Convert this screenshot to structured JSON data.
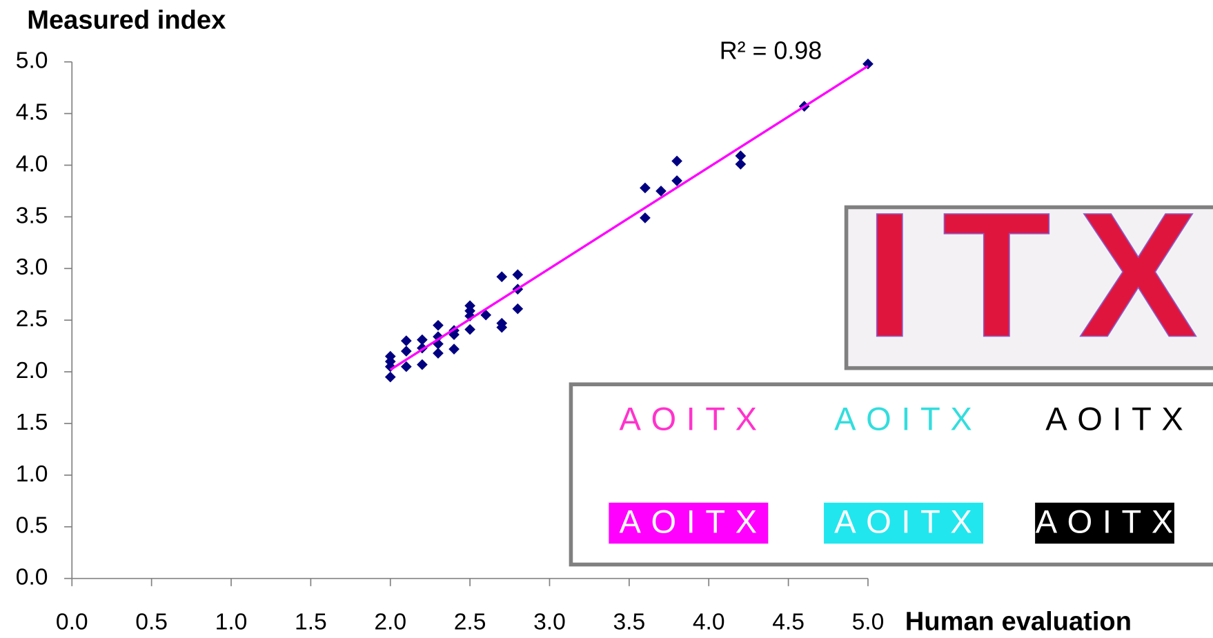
{
  "chart_data": {
    "type": "scatter",
    "ylabel": "Measured index",
    "xlabel": "Human evaluation",
    "annotation": "R² = 0.98",
    "xlim": [
      0,
      5
    ],
    "ylim": [
      0,
      5
    ],
    "xticks": [
      {
        "value": 0,
        "label": "0.0"
      },
      0.5,
      {
        "value": 1,
        "label": "1.0"
      },
      1.5,
      {
        "value": 2,
        "label": "2.0"
      },
      2.5,
      {
        "value": 3,
        "label": "3.0"
      },
      3.5,
      {
        "value": 4,
        "label": "4.0"
      },
      4.5,
      {
        "value": 5,
        "label": "5.0"
      }
    ],
    "yticks": [
      {
        "value": 0,
        "label": "0.0"
      },
      0.5,
      {
        "value": 1,
        "label": "1.0"
      },
      1.5,
      {
        "value": 2,
        "label": "2.0"
      },
      2.5,
      {
        "value": 3,
        "label": "3.0"
      },
      3.5,
      {
        "value": 4,
        "label": "4.0"
      },
      4.5,
      {
        "value": 5,
        "label": "5.0"
      }
    ],
    "series": [
      {
        "color": "#000080",
        "x": [
          2.0,
          2.0,
          2.0,
          2.0,
          2.1,
          2.1,
          2.1,
          2.2,
          2.2,
          2.2,
          2.3,
          2.3,
          2.3,
          2.3,
          2.4,
          2.4,
          2.4,
          2.5,
          2.5,
          2.5,
          2.5,
          2.6,
          2.7,
          2.7,
          2.7,
          2.8,
          2.8,
          2.8,
          3.6,
          3.6,
          3.7,
          3.8,
          3.8,
          4.2,
          4.2,
          4.6,
          5.0
        ],
        "values": [
          2.15,
          2.1,
          2.05,
          1.95,
          2.3,
          2.2,
          2.05,
          2.31,
          2.23,
          2.07,
          2.45,
          2.34,
          2.27,
          2.18,
          2.4,
          2.36,
          2.22,
          2.64,
          2.59,
          2.54,
          2.41,
          2.55,
          2.92,
          2.47,
          2.43,
          2.94,
          2.8,
          2.61,
          3.78,
          3.49,
          3.75,
          4.04,
          3.85,
          4.09,
          4.01,
          4.57,
          4.98
        ]
      }
    ],
    "trendline": {
      "color": "#ff00ff",
      "x": [
        2.0,
        5.0
      ],
      "values": [
        2.02,
        4.96
      ]
    },
    "inset": {
      "large_text": "ITX",
      "samples": [
        "AOITX",
        "AOITX",
        "AOITX",
        "AOITX",
        "AOITX",
        "AOITX"
      ]
    }
  }
}
